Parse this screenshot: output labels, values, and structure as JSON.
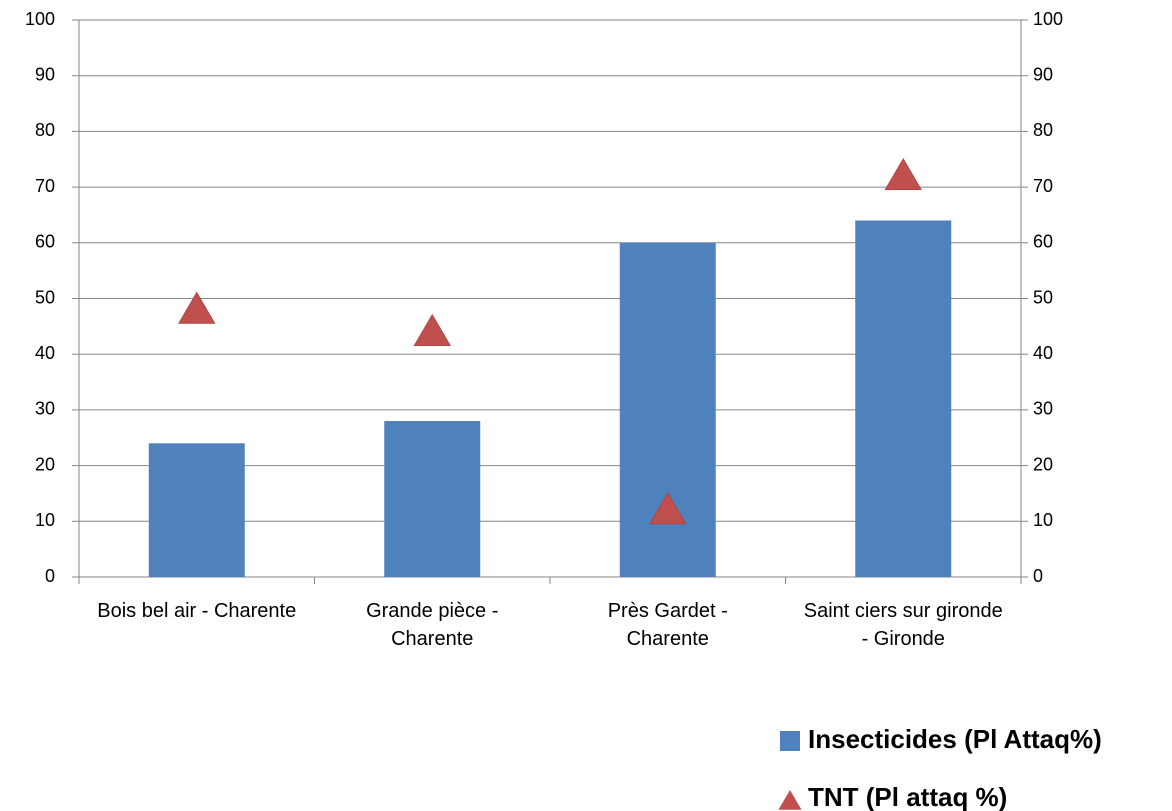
{
  "chart_data": {
    "type": "bar",
    "categories": [
      "Bois bel air - Charente",
      "Grande pièce - Charente",
      "Près Gardet - Charente",
      "Saint ciers sur gironde - Gironde"
    ],
    "series": [
      {
        "name": "Insecticides (Pl Attaq%)",
        "color": "#4f81bd",
        "values": [
          24,
          28,
          60,
          64
        ]
      },
      {
        "name": "TNT (Pl attaq %)",
        "color": "#c0504d",
        "marker": "triangle",
        "axis": "y2",
        "values": [
          48,
          44,
          12,
          72
        ]
      }
    ],
    "ylim": [
      0,
      100
    ],
    "yticks": [
      0,
      10,
      20,
      30,
      40,
      50,
      60,
      70,
      80,
      90,
      100
    ],
    "y2lim": [
      0,
      100
    ],
    "y2ticks": [
      0,
      10,
      20,
      30,
      40,
      50,
      60,
      70,
      80,
      90,
      100
    ],
    "grid": true,
    "legend": "bottom-right"
  }
}
